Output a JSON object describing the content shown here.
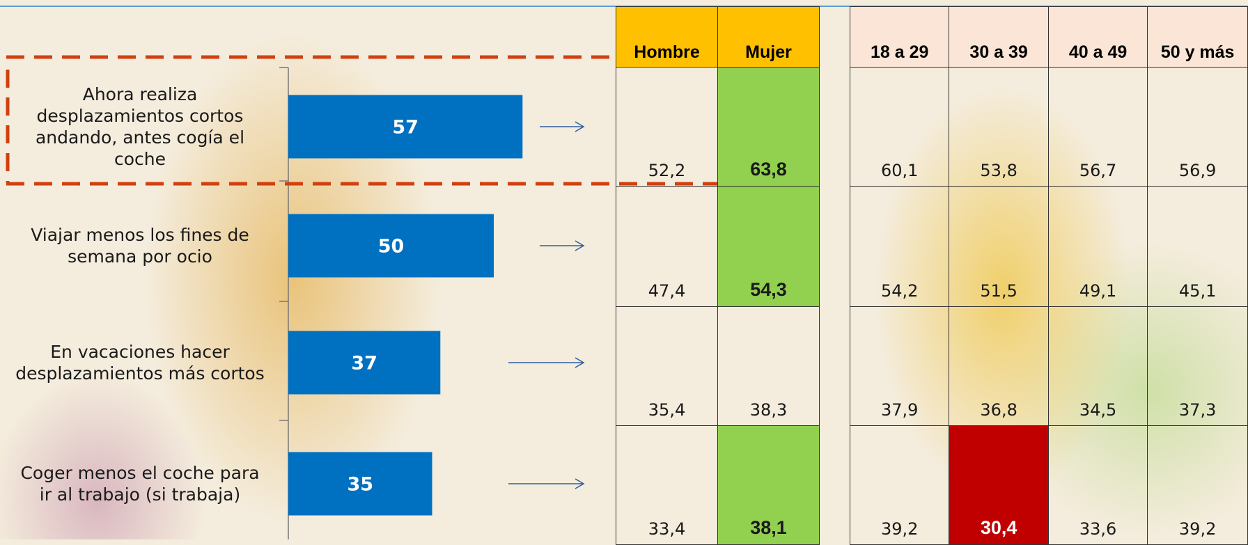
{
  "chart_data": {
    "type": "bar",
    "orientation": "horizontal",
    "categories": [
      "Ahora realiza desplazamientos cortos andando, antes cogía el coche",
      "Viajar menos los fines de semana por ocio",
      "En vacaciones hacer desplazamientos más cortos",
      "Coger menos el coche para ir al trabajo (si trabaja)"
    ],
    "values": [
      57,
      50,
      37,
      35
    ],
    "color": "#0070c0",
    "xlim": [
      0,
      100
    ]
  },
  "gender_table": {
    "headers": [
      "Hombre",
      "Mujer"
    ],
    "rows": [
      [
        "52,2",
        "63,8"
      ],
      [
        "47,4",
        "54,3"
      ],
      [
        "35,4",
        "38,3"
      ],
      [
        "33,4",
        "38,1"
      ]
    ]
  },
  "age_table": {
    "headers": [
      "18 a 29",
      "30 a 39",
      "40 a 49",
      "50 y más"
    ],
    "rows": [
      [
        "60,1",
        "53,8",
        "56,7",
        "56,9"
      ],
      [
        "54,2",
        "51,5",
        "49,1",
        "45,1"
      ],
      [
        "37,9",
        "36,8",
        "34,5",
        "37,3"
      ],
      [
        "39,2",
        "30,4",
        "33,6",
        "39,2"
      ]
    ]
  }
}
